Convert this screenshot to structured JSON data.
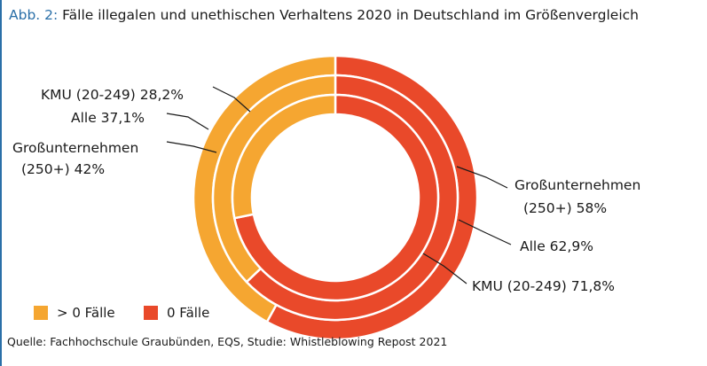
{
  "title": {
    "prefix": "Abb. 2:",
    "text": "Fälle illegalen und unethischen Verhaltens 2020 in Deutschland im Größenvergleich"
  },
  "source": "Quelle: Fachhochschule Graubünden, EQS, Studie: Whistleblowing Repost 2021",
  "legend": [
    {
      "label": "> 0 Fälle",
      "color": "#f5a631"
    },
    {
      "label": "0 Fälle",
      "color": "#e9492a"
    }
  ],
  "chart_data": {
    "type": "pie",
    "variant": "nested-donut",
    "series": [
      {
        "ring": "outer",
        "category": "Großunternehmen (250+)",
        "values": [
          42,
          58
        ],
        "labels": [
          "Großunternehmen (250+) 42%",
          "Großunternehmen (250+) 58%"
        ]
      },
      {
        "ring": "middle",
        "category": "Alle",
        "values": [
          37.1,
          62.9
        ],
        "labels": [
          "Alle 37,1%",
          "Alle 62,9%"
        ]
      },
      {
        "ring": "inner",
        "category": "KMU (20-249)",
        "values": [
          28.2,
          71.8
        ],
        "labels": [
          "KMU (20-249) 28,2%",
          "KMU (20-249) 71,8%"
        ]
      }
    ],
    "label_text": {
      "left_outer_line1": "Großunternehmen",
      "left_outer_line2": "(250+) 42%",
      "left_middle": "Alle 37,1%",
      "left_inner": "KMU (20-249) 28,2%",
      "right_outer_line1": "Großunternehmen",
      "right_outer_line2": "(250+) 58%",
      "right_middle": "Alle 62,9%",
      "right_inner": "KMU (20-249) 71,8%"
    },
    "colors": {
      "positive": "#f5a631",
      "zero": "#e9492a",
      "separator": "#ffffff"
    },
    "legend_position": "bottom-left"
  }
}
